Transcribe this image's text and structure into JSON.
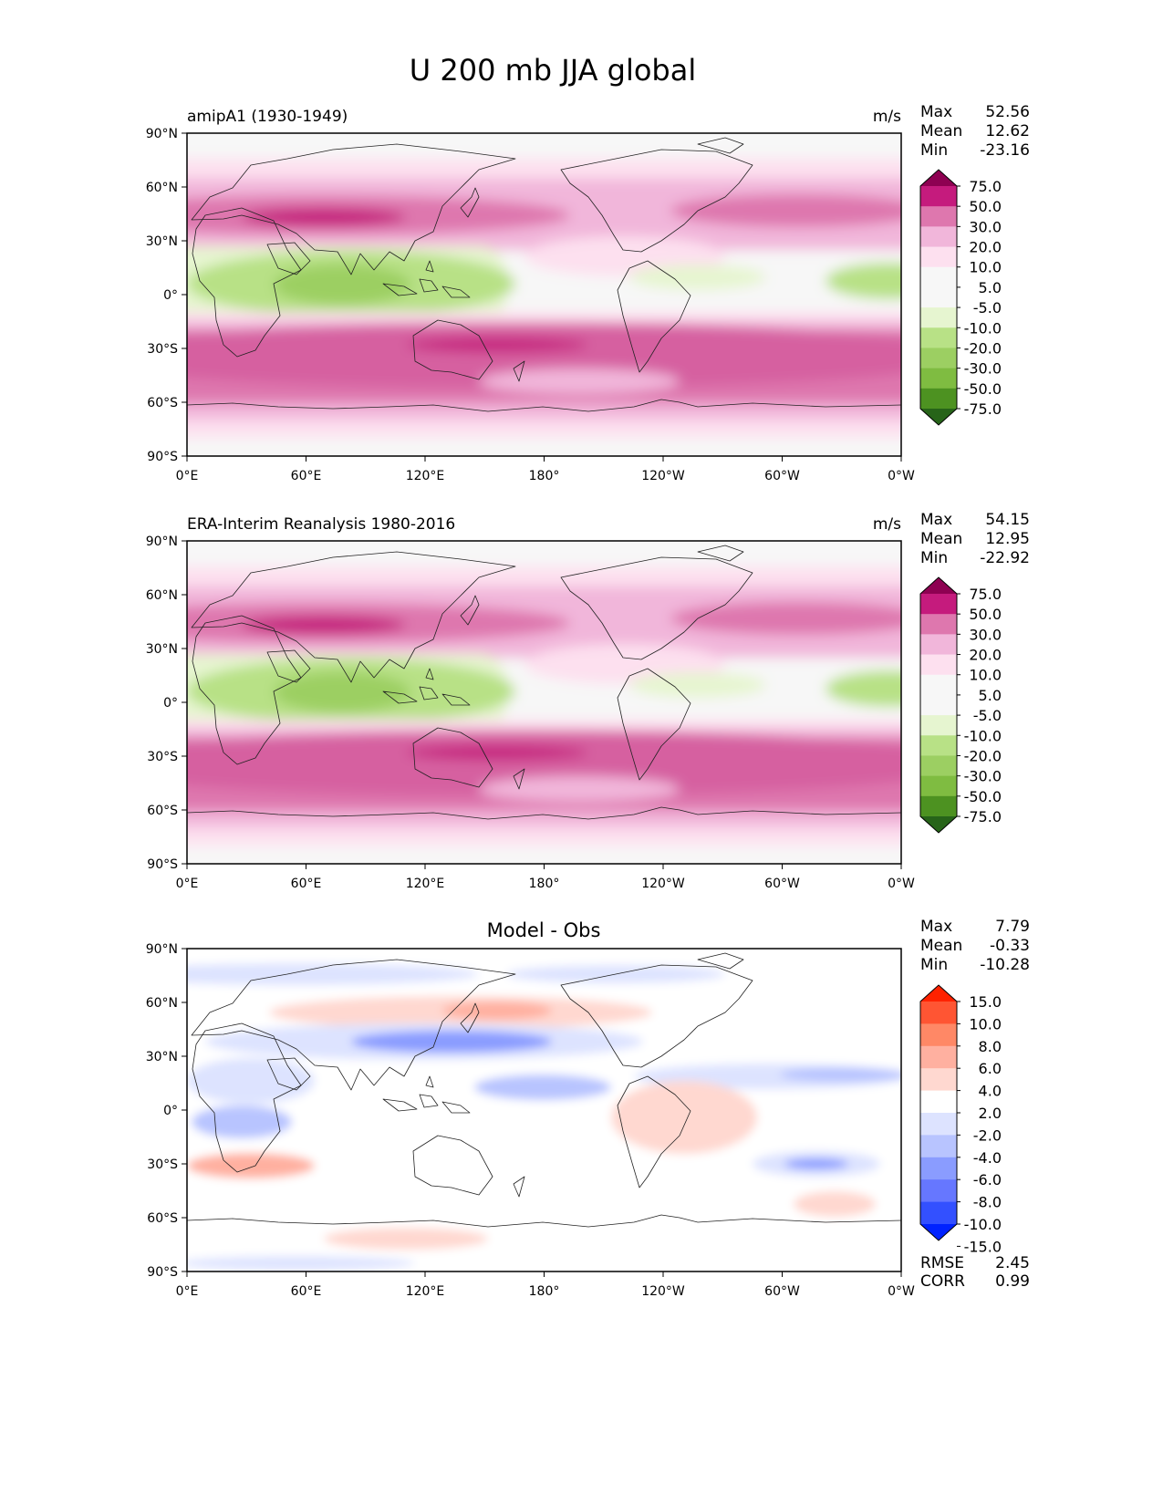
{
  "title": "U 200 mb JJA global",
  "axes": {
    "lat_ticks": [
      "90°N",
      "60°N",
      "30°N",
      "0°",
      "30°S",
      "60°S",
      "90°S"
    ],
    "lon_ticks": [
      "0°E",
      "60°E",
      "120°E",
      "180°",
      "120°W",
      "60°W",
      "0°W"
    ]
  },
  "colors": {
    "mean_levels": [
      "#8e0152",
      "#c51b7d",
      "#de77ae",
      "#f1b6da",
      "#fde0ef",
      "#f7f7f7",
      "#f7f7f7",
      "#e6f5d0",
      "#b8e186",
      "#9ccf62",
      "#7fbc41",
      "#4d9221",
      "#276419"
    ],
    "diff_levels": [
      "#ff2200",
      "#ff5533",
      "#ff8866",
      "#ffb0a0",
      "#ffd8d0",
      "#ffffff",
      "#dde3ff",
      "#b8c4ff",
      "#8a9cff",
      "#6677ff",
      "#3350ff",
      "#0022ff"
    ]
  },
  "chart_data": [
    {
      "type": "heatmap",
      "name": "model",
      "subtitle": "amipA1 (1930-1949)",
      "units": "m/s",
      "stats": {
        "max_label": "Max",
        "max": "52.56",
        "mean_label": "Mean",
        "mean": "12.62",
        "min_label": "Min",
        "min": "-23.16"
      },
      "colorbar_levels": [
        "75.0",
        "50.0",
        "30.0",
        "20.0",
        "10.0",
        "5.0",
        "-5.0",
        "-10.0",
        "-20.0",
        "-30.0",
        "-50.0",
        "-75.0"
      ],
      "xlim": [
        0,
        360
      ],
      "ylim": [
        -90,
        90
      ]
    },
    {
      "type": "heatmap",
      "name": "obs",
      "subtitle": "ERA-Interim Reanalysis 1980-2016",
      "units": "m/s",
      "stats": {
        "max_label": "Max",
        "max": "54.15",
        "mean_label": "Mean",
        "mean": "12.95",
        "min_label": "Min",
        "min": "-22.92"
      },
      "colorbar_levels": [
        "75.0",
        "50.0",
        "30.0",
        "20.0",
        "10.0",
        "5.0",
        "-5.0",
        "-10.0",
        "-20.0",
        "-30.0",
        "-50.0",
        "-75.0"
      ],
      "xlim": [
        0,
        360
      ],
      "ylim": [
        -90,
        90
      ]
    },
    {
      "type": "heatmap",
      "name": "diff",
      "subtitle": "Model - Obs",
      "stats": {
        "max_label": "Max",
        "max": "7.79",
        "mean_label": "Mean",
        "mean": "-0.33",
        "min_label": "Min",
        "min": "-10.28",
        "rmse_label": "RMSE",
        "rmse": "2.45",
        "corr_label": "CORR",
        "corr": "0.99"
      },
      "colorbar_levels": [
        "15.0",
        "10.0",
        "8.0",
        "6.0",
        "4.0",
        "2.0",
        "-2.0",
        "-4.0",
        "-6.0",
        "-8.0",
        "-10.0",
        "-15.0"
      ],
      "xlim": [
        0,
        360
      ],
      "ylim": [
        -90,
        90
      ]
    }
  ]
}
